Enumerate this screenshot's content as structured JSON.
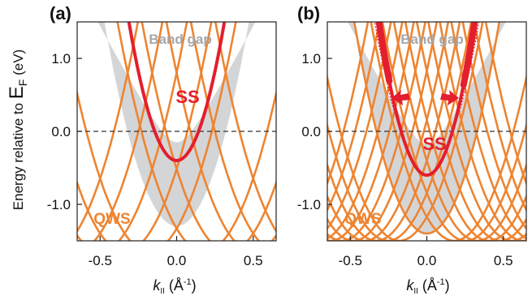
{
  "chart_data": [
    {
      "panel_label": "(a)",
      "type": "line",
      "xlim": [
        -0.65,
        0.65
      ],
      "ylim": [
        -1.5,
        1.5
      ],
      "xticks": [
        -0.5,
        0.0,
        0.5
      ],
      "xtick_labels": [
        "-0.5",
        "0.0",
        "0.5"
      ],
      "yticks": [
        -1.0,
        0.0,
        1.0
      ],
      "ytick_labels": [
        "-1.0",
        "0.0",
        "1.0"
      ],
      "fermi_level": 0.0,
      "bulk_band_bottom": -1.3,
      "surface_state_bottom": -0.4,
      "annotations": {
        "band_gap": "Band gap",
        "surface_state": "SS",
        "quantum_well_states": "QWS"
      },
      "colors": {
        "bulk": "#d4d5d7",
        "qws": "#ee8430",
        "ss": "#e31e2d"
      }
    },
    {
      "panel_label": "(b)",
      "type": "line",
      "xlim": [
        -0.65,
        0.65
      ],
      "ylim": [
        -1.5,
        1.5
      ],
      "xticks": [
        -0.5,
        0.0,
        0.5
      ],
      "xtick_labels": [
        "-0.5",
        "0.0",
        "0.5"
      ],
      "yticks": [
        -1.0,
        0.0,
        1.0
      ],
      "ytick_labels": [
        "-1.0",
        "0.0",
        "1.0"
      ],
      "fermi_level": 0.0,
      "bulk_band_bottom": -1.4,
      "surface_state_bottom": -0.6,
      "annotations": {
        "band_gap": "Band gap",
        "surface_state": "SS",
        "quantum_well_states": "QWS"
      },
      "colors": {
        "bulk": "#d4d5d7",
        "qws": "#ee8430",
        "ss": "#e31e2d"
      }
    }
  ],
  "axes": {
    "ylabel_prefix": "Energy relative to ",
    "ylabel_symbol": "E",
    "ylabel_subscript": "F",
    "ylabel_unit": " (eV)",
    "xlabel_symbol": "k",
    "xlabel_subscript": "II",
    "xlabel_unit_open": " (Å",
    "xlabel_unit_sup": "-1",
    "xlabel_unit_close": ")"
  }
}
